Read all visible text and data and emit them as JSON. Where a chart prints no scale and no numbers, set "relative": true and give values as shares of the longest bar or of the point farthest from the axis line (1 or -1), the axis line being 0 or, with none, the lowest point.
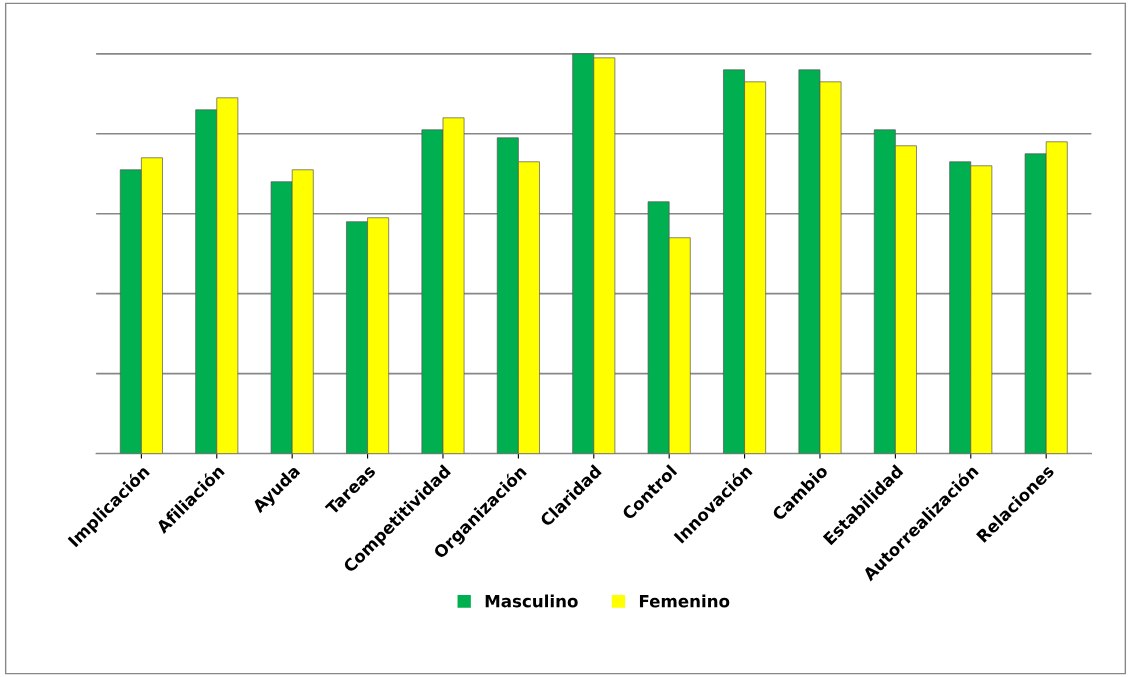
{
  "chart_data": {
    "type": "bar",
    "relative": true,
    "grid": "y",
    "legend": "bottom",
    "categories": [
      "Implicación",
      "Afiliación",
      "Ayuda",
      "Tareas",
      "Competitividad",
      "Organización",
      "Claridad",
      "Control",
      "Innovación",
      "Cambio",
      "Estabilidad",
      "Autorrealización",
      "Relaciones"
    ],
    "series": [
      {
        "name": "Masculino",
        "color": "#00b050",
        "values": [
          0.71,
          0.86,
          0.68,
          0.58,
          0.81,
          0.79,
          1,
          0.63,
          0.96,
          0.96,
          0.81,
          0.73,
          0.75
        ]
      },
      {
        "name": "Femenino",
        "color": "#ffff00",
        "values": [
          0.74,
          0.89,
          0.71,
          0.59,
          0.84,
          0.73,
          0.99,
          0.54,
          0.93,
          0.93,
          0.77,
          0.72,
          0.78
        ]
      }
    ]
  }
}
